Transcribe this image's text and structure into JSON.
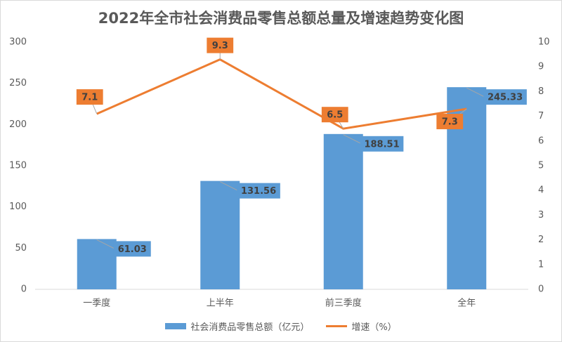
{
  "chart_data": {
    "type": "bar",
    "title": "2022年全市社会消费品零售总额总量及增速趋势变化图",
    "categories": [
      "一季度",
      "上半年",
      "前三季度",
      "全年"
    ],
    "series": [
      {
        "name": "社会消费品零售总额（亿元）",
        "type": "bar",
        "axis": "left",
        "values": [
          61.03,
          131.56,
          188.51,
          245.33
        ],
        "labels": [
          "61.03",
          "131.56",
          "188.51",
          "245.33"
        ]
      },
      {
        "name": "增速（%）",
        "type": "line",
        "axis": "right",
        "values": [
          7.1,
          9.3,
          6.5,
          7.3
        ],
        "labels": [
          "7.1",
          "9.3",
          "6.5",
          "7.3"
        ]
      }
    ],
    "y_left": {
      "min": 0,
      "max": 300,
      "step": 50,
      "ticks": [
        "0",
        "50",
        "100",
        "150",
        "200",
        "250",
        "300"
      ]
    },
    "y_right": {
      "min": 0,
      "max": 10,
      "step": 1,
      "ticks": [
        "0",
        "1",
        "2",
        "3",
        "4",
        "5",
        "6",
        "7",
        "8",
        "9",
        "10"
      ]
    },
    "grid": false,
    "legend_position": "bottom",
    "colors": {
      "bar": "#5b9bd5",
      "line": "#ed7d31",
      "line_label_bg": "#ed7d31",
      "bar_label_bg": "#5b9bd5"
    }
  }
}
